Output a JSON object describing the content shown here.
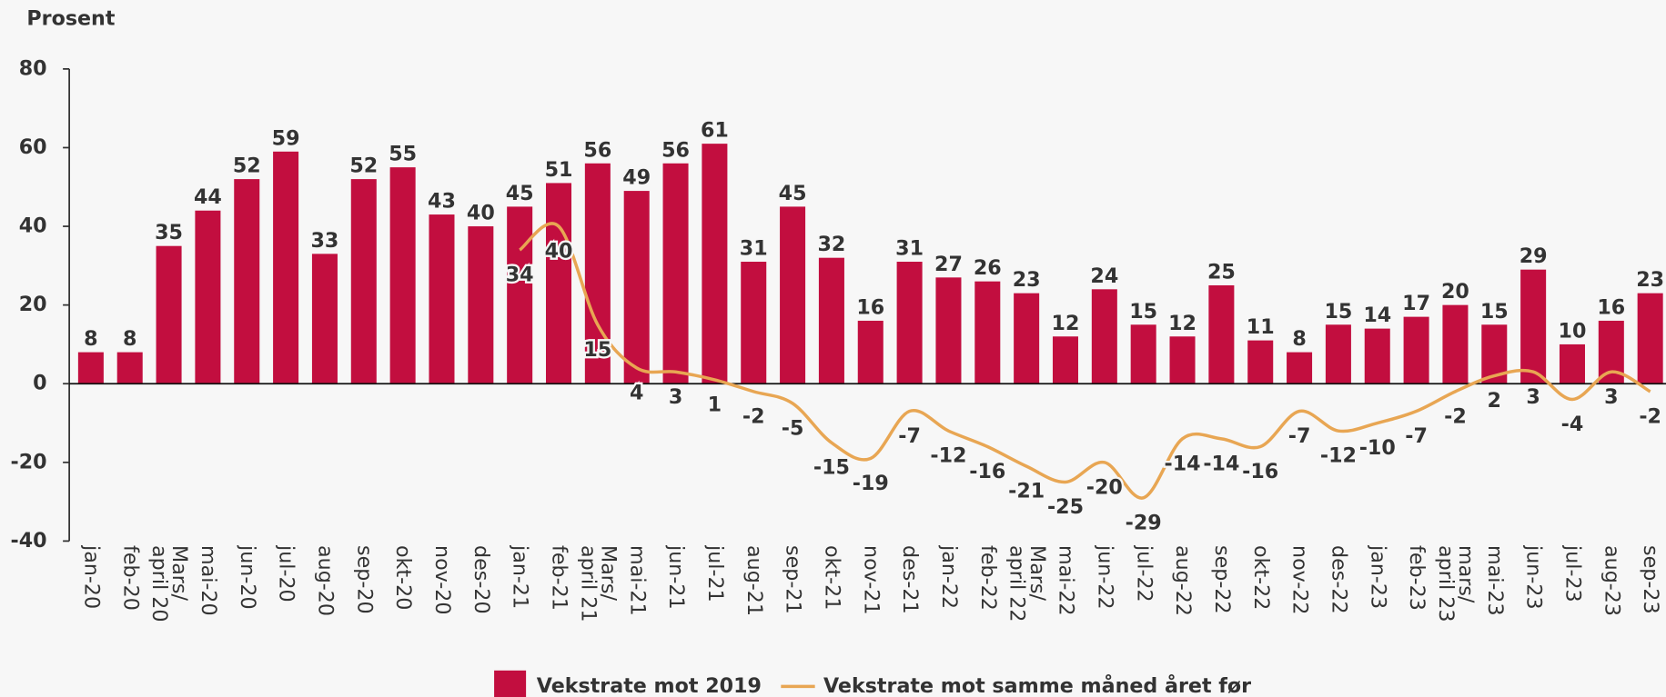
{
  "chart_data": {
    "type": "bar-line",
    "y_axis_title": "Prosent",
    "categories": [
      "jan-20",
      "feb-20",
      "Mars/ april 20",
      "mai-20",
      "jun-20",
      "jul-20",
      "aug-20",
      "sep-20",
      "okt-20",
      "nov-20",
      "des-20",
      "jan-21",
      "feb-21",
      "Mars/ april 21",
      "mai-21",
      "jun-21",
      "jul-21",
      "aug-21",
      "sep-21",
      "okt-21",
      "nov-21",
      "des-21",
      "jan-22",
      "feb-22",
      "Mars/ april 22",
      "mai-22",
      "jun-22",
      "jul-22",
      "aug-22",
      "sep-22",
      "okt-22",
      "nov-22",
      "des-22",
      "jan-23",
      "feb-23",
      "mars/ april 23",
      "mai-23",
      "jun-23",
      "jul-23",
      "aug-23",
      "sep-23"
    ],
    "series": [
      {
        "name": "Vekstrate mot 2019",
        "type": "bar",
        "color": "#c20e3f",
        "values": [
          8,
          8,
          35,
          44,
          52,
          59,
          33,
          52,
          55,
          43,
          40,
          45,
          51,
          56,
          49,
          56,
          61,
          31,
          45,
          32,
          16,
          31,
          27,
          26,
          23,
          12,
          24,
          15,
          12,
          25,
          11,
          8,
          15,
          14,
          17,
          20,
          15,
          29,
          10,
          16,
          23
        ]
      },
      {
        "name": "Vekstrate mot samme måned året før",
        "type": "line",
        "color": "#e8a653",
        "values": [
          null,
          null,
          null,
          null,
          null,
          null,
          null,
          null,
          null,
          null,
          null,
          34,
          40,
          15,
          4,
          3,
          1,
          -2,
          -5,
          -15,
          -19,
          -7,
          -12,
          -16,
          -21,
          -25,
          -20,
          -29,
          -14,
          -14,
          -16,
          -7,
          -12,
          -10,
          -7,
          -2,
          2,
          3,
          -4,
          3,
          -2
        ]
      }
    ],
    "ylim": [
      -40,
      80
    ],
    "yticks": [
      -40,
      -20,
      0,
      20,
      40,
      60,
      80
    ],
    "legend": "bottom"
  }
}
